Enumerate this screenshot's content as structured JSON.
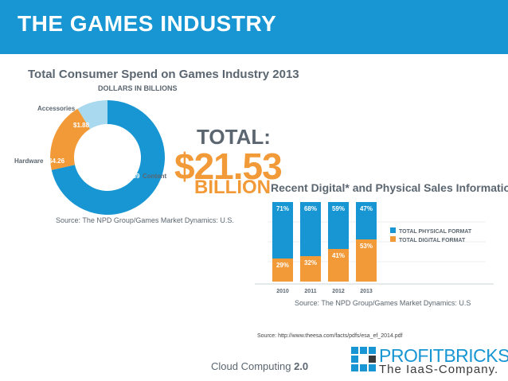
{
  "header": {
    "title": "THE GAMES INDUSTRY"
  },
  "colors": {
    "header_bg": "#1796d3",
    "content": "#1796d3",
    "hardware": "#f29a38",
    "accessories": "#a9d9ef",
    "text": "#5b6670",
    "grid": "#c9d3d9"
  },
  "donut": {
    "title": "Total Consumer Spend on Games Industry 2013",
    "subtitle": "DOLLARS IN BILLIONS",
    "source": "Source: The NPD Group/Games Market Dynamics: U.S.",
    "labels": {
      "accessories": "Accessories",
      "hardware": "Hardware",
      "content": "Content"
    },
    "value_labels": {
      "accessories": "$1.88",
      "hardware": "$4.26",
      "content": "$15.39"
    }
  },
  "total": {
    "label": "TOTAL:",
    "value": "$21.53",
    "unit": "BILLION"
  },
  "bar_chart": {
    "title": "Recent Digital* and Physical Sales Information",
    "source": "Source: The NPD Group/Games Market Dynamics: U.S",
    "legend": {
      "physical": "TOTAL PHYSICAL FORMAT",
      "digital": "TOTAL DIGITAL FORMAT"
    }
  },
  "chart_data": [
    {
      "type": "pie",
      "title": "Total Consumer Spend on Games Industry 2013",
      "subtitle": "DOLLARS IN BILLIONS",
      "categories": [
        "Content",
        "Hardware",
        "Accessories"
      ],
      "values": [
        15.39,
        4.26,
        1.88
      ],
      "unit": "DOLLARS IN BILLIONS"
    },
    {
      "type": "bar",
      "stacked": true,
      "title": "Recent Digital* and Physical Sales Information",
      "categories": [
        "2010",
        "2011",
        "2012",
        "2013"
      ],
      "series": [
        {
          "name": "TOTAL DIGITAL FORMAT",
          "values": [
            29,
            32,
            41,
            53
          ],
          "labels": [
            "29%",
            "32%",
            "41%",
            "53%"
          ]
        },
        {
          "name": "TOTAL PHYSICAL FORMAT",
          "values": [
            71,
            68,
            59,
            47
          ],
          "labels": [
            "71%",
            "68%",
            "59%",
            "47%"
          ]
        }
      ],
      "ylim": [
        0,
        100
      ],
      "legend": "right",
      "grid": true
    }
  ],
  "source_url": "Source: http://www.theesa.com/facts/pdfs/esa_ef_2014.pdf",
  "footer": {
    "text": "Cloud Computing ",
    "version": "2.0"
  },
  "logo": {
    "name": "PROFITBRICKS",
    "tagline": "The IaaS-Company."
  }
}
